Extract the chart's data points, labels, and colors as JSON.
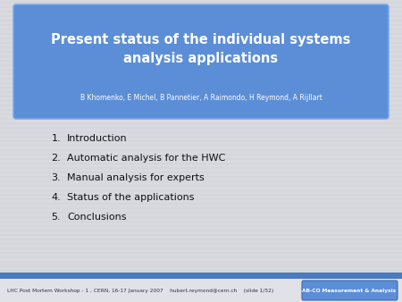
{
  "slide_bg": "#d8dae0",
  "title_box_color": "#5b8ed6",
  "title_box_border": "#4a7abf",
  "title_text": "Present status of the individual systems\nanalysis applications",
  "subtitle_text": "B Khomenko, E Michel, B Pannetier, A Raimondo, H Reymond, A Rijllart",
  "title_color": "#ffffff",
  "subtitle_color": "#ffffff",
  "items": [
    "Introduction",
    "Automatic analysis for the HWC",
    "Manual analysis for experts",
    "Status of the applications",
    "Conclusions"
  ],
  "item_color": "#111111",
  "footer_bar_color": "#4a7abf",
  "footer_text": "LHC Post Mortem Workshop - 1 , CERN, 16-17 January 2007    hubert.reymond@cern.ch    (slide 1/52)",
  "footer_badge_color": "#5b8ed6",
  "footer_badge_text": "AB-CO Measurement & Analysis",
  "footer_text_color": "#333333",
  "footer_badge_text_color": "#ffffff"
}
